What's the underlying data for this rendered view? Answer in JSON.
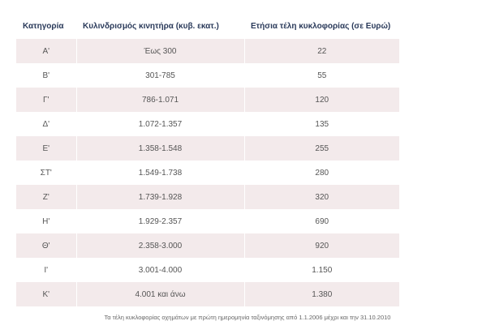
{
  "table": {
    "headers": [
      "Κατηγορία",
      "Κυλινδρισμός κινητήρα (κυβ. εκατ.)",
      "Ετήσια τέλη κυκλοφορίας (σε Ευρώ)"
    ],
    "rows": [
      [
        "Α'",
        "Έως 300",
        "22"
      ],
      [
        "Β'",
        "301-785",
        "55"
      ],
      [
        "Γ'",
        "786-1.071",
        "120"
      ],
      [
        "Δ'",
        "1.072-1.357",
        "135"
      ],
      [
        "Ε'",
        "1.358-1.548",
        "255"
      ],
      [
        "ΣΤ'",
        "1.549-1.738",
        "280"
      ],
      [
        "Ζ'",
        "1.739-1.928",
        "320"
      ],
      [
        "Η'",
        "1.929-2.357",
        "690"
      ],
      [
        "Θ'",
        "2.358-3.000",
        "920"
      ],
      [
        "Ι'",
        "3.001-4.000",
        "1.150"
      ],
      [
        "Κ'",
        "4.001 και άνω",
        "1.380"
      ]
    ]
  },
  "caption": "Τα τέλη κυκλοφορίας οχημάτων με πρώτη ημερομηνία ταξινόμησης από 1.1.2006 μέχρι και την 31.10.2010"
}
